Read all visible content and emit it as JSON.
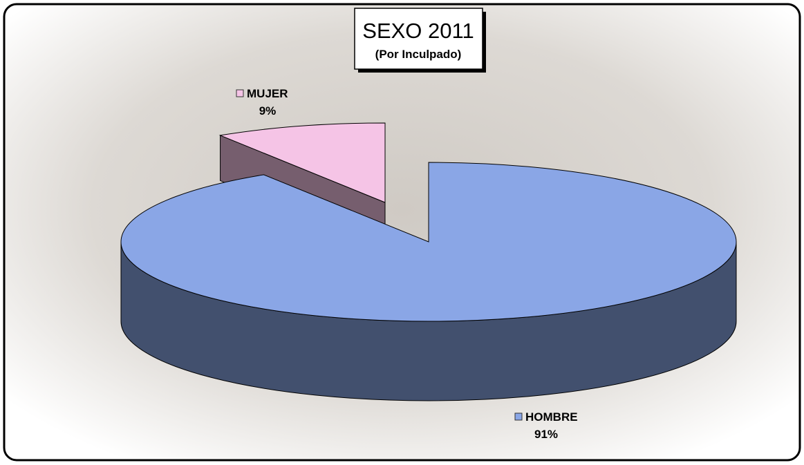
{
  "chart_data": {
    "type": "pie3d",
    "title": "SEXO 2011",
    "subtitle": "(Por Inculpado)",
    "categories": [
      "HOMBRE",
      "MUJER"
    ],
    "values": [
      91,
      9
    ],
    "value_labels": [
      "91%",
      "9%"
    ],
    "colors": [
      "#8aa6e6",
      "#f5c4e6"
    ]
  }
}
